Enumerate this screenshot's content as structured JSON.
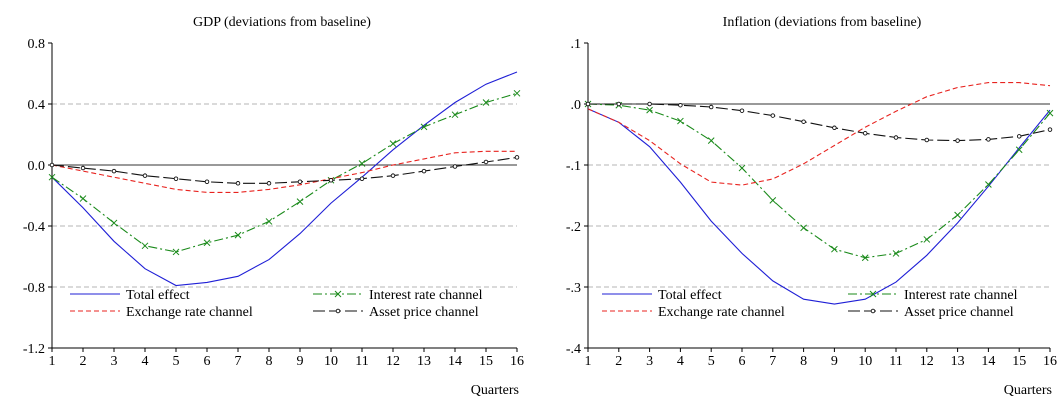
{
  "chart_data": [
    {
      "type": "line",
      "title": "GDP (deviations from baseline)",
      "xlabel": "Quarters",
      "ylabel": "",
      "x": [
        1,
        2,
        3,
        4,
        5,
        6,
        7,
        8,
        9,
        10,
        11,
        12,
        13,
        14,
        15,
        16
      ],
      "xlim": [
        1,
        16
      ],
      "ylim": [
        -1.2,
        0.8
      ],
      "yticks": [
        -1.2,
        -0.8,
        -0.4,
        0.0,
        0.4,
        0.8
      ],
      "ytick_labels": [
        "-1.2",
        "-0.8",
        "-0.4",
        "0.0",
        "0.4",
        "0.8"
      ],
      "gridlines": [
        -0.8,
        -0.4,
        0.4
      ],
      "zero_line": 0,
      "legend": "bottom",
      "series": [
        {
          "name": "Total effect",
          "color": "#1f1fd6",
          "style": "solid",
          "marker": "none",
          "values": [
            -0.08,
            -0.28,
            -0.5,
            -0.68,
            -0.79,
            -0.77,
            -0.73,
            -0.62,
            -0.45,
            -0.25,
            -0.08,
            0.1,
            0.26,
            0.41,
            0.53,
            0.61
          ]
        },
        {
          "name": "Interest rate channel",
          "color": "#1a8a1a",
          "style": "dashdot",
          "marker": "x",
          "values": [
            -0.08,
            -0.22,
            -0.38,
            -0.53,
            -0.57,
            -0.51,
            -0.46,
            -0.37,
            -0.24,
            -0.1,
            0.01,
            0.14,
            0.25,
            0.33,
            0.41,
            0.47
          ]
        },
        {
          "name": "Exchange rate channel",
          "color": "#e8231f",
          "style": "dashed",
          "marker": "none",
          "values": [
            0.0,
            -0.04,
            -0.08,
            -0.12,
            -0.16,
            -0.18,
            -0.18,
            -0.16,
            -0.13,
            -0.09,
            -0.05,
            0.0,
            0.04,
            0.08,
            0.09,
            0.09
          ]
        },
        {
          "name": "Asset price channel",
          "color": "#111111",
          "style": "longdash",
          "marker": "dot",
          "values": [
            0.0,
            -0.02,
            -0.04,
            -0.07,
            -0.09,
            -0.11,
            -0.12,
            -0.12,
            -0.11,
            -0.1,
            -0.09,
            -0.07,
            -0.04,
            -0.01,
            0.02,
            0.05
          ]
        }
      ]
    },
    {
      "type": "line",
      "title": "Inflation (deviations from baseline)",
      "xlabel": "Quarters",
      "ylabel": "",
      "x": [
        1,
        2,
        3,
        4,
        5,
        6,
        7,
        8,
        9,
        10,
        11,
        12,
        13,
        14,
        15,
        16
      ],
      "xlim": [
        1,
        16
      ],
      "ylim": [
        -0.4,
        0.1
      ],
      "yticks": [
        -0.4,
        -0.3,
        -0.2,
        -0.1,
        0.0,
        0.1
      ],
      "ytick_labels": [
        "-.4",
        "-.3",
        "-.2",
        "-.1",
        ".0",
        ".1"
      ],
      "gridlines": [
        -0.3,
        -0.2,
        -0.1
      ],
      "zero_line": 0,
      "legend": "bottom",
      "series": [
        {
          "name": "Total effect",
          "color": "#1f1fd6",
          "style": "solid",
          "marker": "none",
          "values": [
            -0.008,
            -0.03,
            -0.07,
            -0.128,
            -0.192,
            -0.245,
            -0.29,
            -0.32,
            -0.328,
            -0.32,
            -0.292,
            -0.248,
            -0.195,
            -0.135,
            -0.072,
            -0.01
          ]
        },
        {
          "name": "Interest rate channel",
          "color": "#1a8a1a",
          "style": "dashdot",
          "marker": "x",
          "values": [
            0.0,
            -0.002,
            -0.01,
            -0.028,
            -0.06,
            -0.105,
            -0.158,
            -0.203,
            -0.238,
            -0.252,
            -0.245,
            -0.222,
            -0.182,
            -0.132,
            -0.075,
            -0.015
          ]
        },
        {
          "name": "Exchange rate channel",
          "color": "#e8231f",
          "style": "dashed",
          "marker": "none",
          "values": [
            -0.008,
            -0.03,
            -0.06,
            -0.098,
            -0.128,
            -0.133,
            -0.123,
            -0.098,
            -0.068,
            -0.038,
            -0.012,
            0.012,
            0.027,
            0.035,
            0.035,
            0.03
          ]
        },
        {
          "name": "Asset price channel",
          "color": "#111111",
          "style": "longdash",
          "marker": "dot",
          "values": [
            0.0,
            0.0,
            0.0,
            -0.002,
            -0.005,
            -0.011,
            -0.019,
            -0.029,
            -0.039,
            -0.048,
            -0.055,
            -0.059,
            -0.06,
            -0.058,
            -0.053,
            -0.042
          ]
        }
      ]
    }
  ]
}
